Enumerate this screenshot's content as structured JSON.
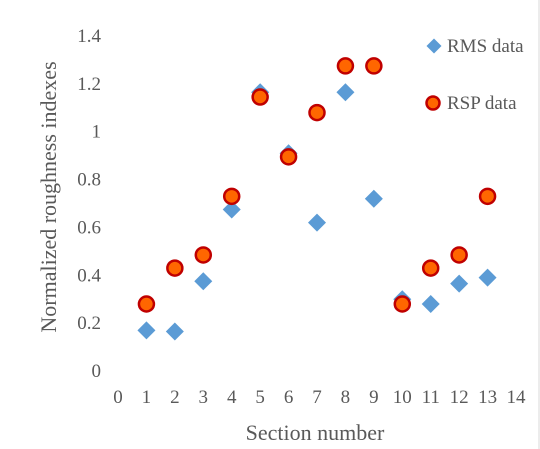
{
  "chart_data": {
    "type": "scatter",
    "title": "",
    "xlabel": "Section number",
    "ylabel": "Normalized roughness indexes",
    "xlim": [
      0,
      14
    ],
    "ylim": [
      0,
      1.4
    ],
    "xticks": [
      "0",
      "1",
      "2",
      "3",
      "4",
      "5",
      "6",
      "7",
      "8",
      "9",
      "10",
      "11",
      "12",
      "13",
      "14"
    ],
    "yticks": [
      "0",
      "0.2",
      "0.4",
      "0.6",
      "0.8",
      "1",
      "1.2",
      "1.4"
    ],
    "grid": false,
    "legend_position": "top-right",
    "series": [
      {
        "name": "RMS data",
        "marker": "diamond",
        "color": "#5b9bd5",
        "x": [
          1,
          2,
          3,
          4,
          5,
          6,
          7,
          8,
          9,
          10,
          11,
          12,
          13
        ],
        "y": [
          0.17,
          0.165,
          0.375,
          0.675,
          1.165,
          0.91,
          0.62,
          1.165,
          0.72,
          0.3,
          0.28,
          0.365,
          0.39
        ]
      },
      {
        "name": "RSP data",
        "marker": "circle",
        "color": "#ff6600",
        "edge_color": "#c00000",
        "x": [
          1,
          2,
          3,
          4,
          5,
          6,
          7,
          8,
          9,
          10,
          11,
          12,
          13
        ],
        "y": [
          0.28,
          0.43,
          0.485,
          0.73,
          1.145,
          0.895,
          1.08,
          1.275,
          1.275,
          0.28,
          0.43,
          0.485,
          0.73
        ]
      }
    ]
  }
}
